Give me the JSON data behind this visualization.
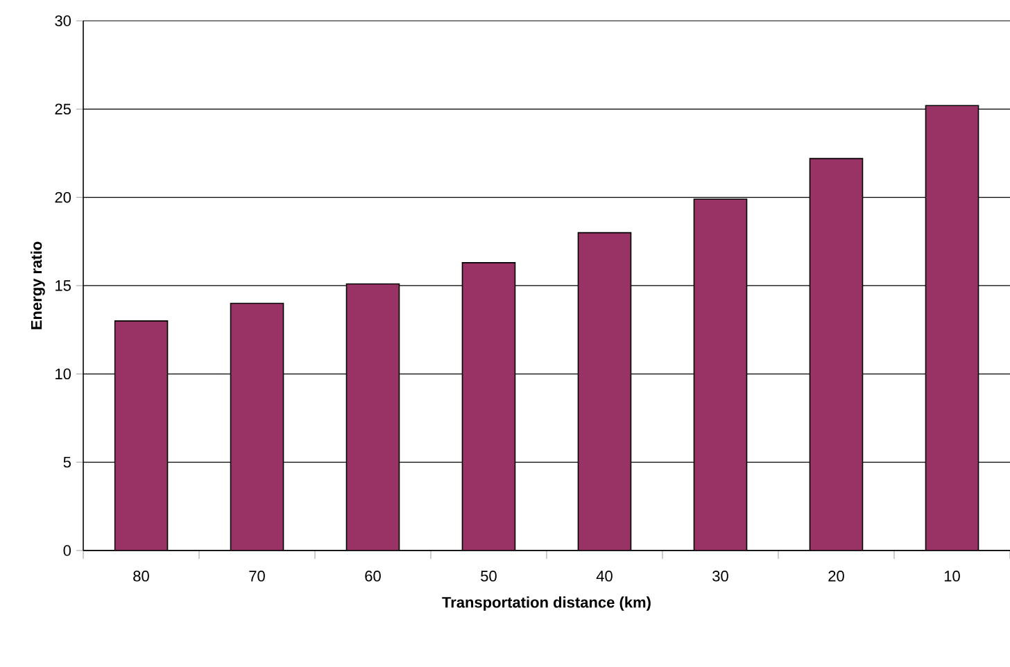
{
  "chart_data": {
    "type": "bar",
    "xlabel": "Transportation distance (km)",
    "ylabel": "Energy ratio",
    "categories": [
      "80",
      "70",
      "60",
      "50",
      "40",
      "30",
      "20",
      "10"
    ],
    "values": [
      13.0,
      14.0,
      15.1,
      16.3,
      18.0,
      19.9,
      22.2,
      25.2
    ],
    "color": "#993366",
    "ylim": [
      0,
      30
    ],
    "yticks": [
      0,
      5,
      10,
      15,
      20,
      25,
      30
    ],
    "grid": "y"
  }
}
